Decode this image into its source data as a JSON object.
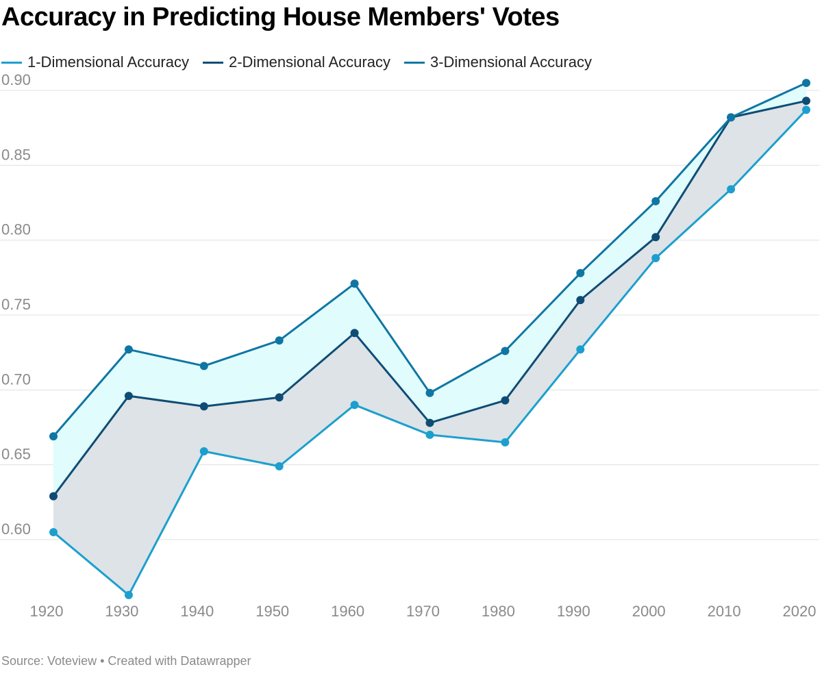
{
  "chart_data": {
    "type": "line",
    "title": "Accuracy in Predicting House Members' Votes",
    "xlabel": "",
    "ylabel": "",
    "x": [
      1920,
      1930,
      1940,
      1950,
      1960,
      1970,
      1980,
      1990,
      2000,
      2010,
      2020
    ],
    "x_tick_labels": [
      "1920",
      "1930",
      "1940",
      "1950",
      "1960",
      "1970",
      "1980",
      "1990",
      "2000",
      "2010",
      "2020"
    ],
    "y_ticks": [
      0.6,
      0.65,
      0.7,
      0.75,
      0.8,
      0.85,
      0.9
    ],
    "y_tick_labels": [
      "0.60",
      "0.65",
      "0.70",
      "0.75",
      "0.80",
      "0.85",
      "0.90"
    ],
    "ylim": [
      0.563,
      0.905
    ],
    "xlim": [
      1920,
      2020
    ],
    "grid": true,
    "legend_position": "top-left",
    "series": [
      {
        "name": "1-Dimensional Accuracy",
        "color": "#1c9fcf",
        "values": [
          0.605,
          0.563,
          0.659,
          0.649,
          0.69,
          0.67,
          0.665,
          0.727,
          0.788,
          0.834,
          0.887
        ]
      },
      {
        "name": "2-Dimensional Accuracy",
        "color": "#0f4c75",
        "values": [
          0.629,
          0.696,
          0.689,
          0.695,
          0.738,
          0.678,
          0.693,
          0.76,
          0.802,
          0.882,
          0.893
        ]
      },
      {
        "name": "3-Dimensional Accuracy",
        "color": "#0f76a3",
        "values": [
          0.669,
          0.727,
          0.716,
          0.733,
          0.771,
          0.698,
          0.726,
          0.778,
          0.826,
          0.882,
          0.905
        ]
      }
    ],
    "area_fills": [
      {
        "between": [
          "1-Dimensional Accuracy",
          "2-Dimensional Accuracy"
        ],
        "color": "#dde3e6"
      },
      {
        "between": [
          "2-Dimensional Accuracy",
          "3-Dimensional Accuracy"
        ],
        "color": "#e0fcfd"
      }
    ]
  },
  "colors": {
    "grid": "#e0e0e0",
    "tick_text": "#8a8a8a"
  },
  "source_text": "Source: Voteview • Created with Datawrapper"
}
